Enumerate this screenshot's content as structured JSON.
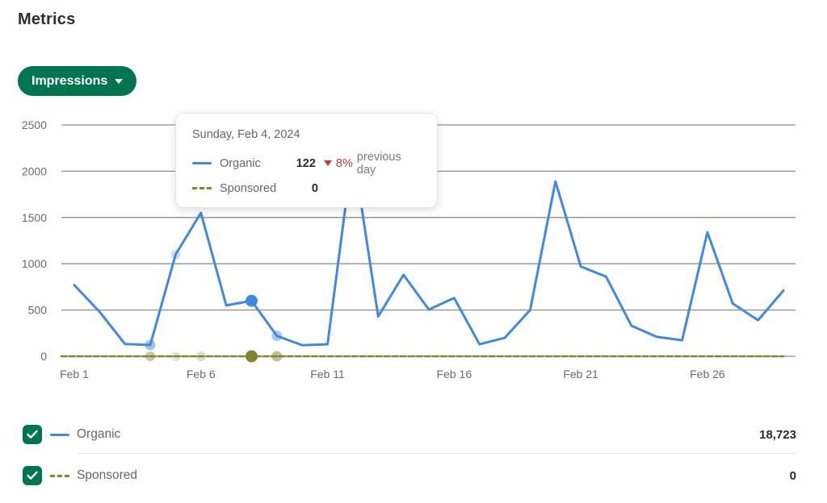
{
  "page": {
    "title": "Metrics"
  },
  "metric_selector": {
    "label": "Impressions",
    "icon": "chevron-down-icon"
  },
  "colors": {
    "accent_green": "#01754f",
    "organic_blue": "#4189dd",
    "sponsored_olive": "#7e8430",
    "negative_red": "#c13a31",
    "grid_gray": "#8e8e8e",
    "axis_text": "#6b6b6b"
  },
  "tooltip": {
    "date": "Sunday, Feb 4, 2024",
    "rows": [
      {
        "series": "Organic",
        "value": "122",
        "direction": "down",
        "change": "8%",
        "change_suffix": "previous day"
      },
      {
        "series": "Sponsored",
        "value": "0",
        "direction": null,
        "change": null,
        "change_suffix": null
      }
    ]
  },
  "legend": {
    "rows": [
      {
        "label": "Organic",
        "total": "18,723",
        "checked": true,
        "swatch": "solid-blue"
      },
      {
        "label": "Sponsored",
        "total": "0",
        "checked": true,
        "swatch": "dashed-olive"
      }
    ]
  },
  "chart_data": {
    "type": "line",
    "title": "Impressions by day",
    "x": [
      "Feb 1",
      "Feb 2",
      "Feb 3",
      "Feb 4",
      "Feb 5",
      "Feb 6",
      "Feb 7",
      "Feb 8",
      "Feb 9",
      "Feb 10",
      "Feb 11",
      "Feb 12",
      "Feb 13",
      "Feb 14",
      "Feb 15",
      "Feb 16",
      "Feb 17",
      "Feb 18",
      "Feb 19",
      "Feb 20",
      "Feb 21",
      "Feb 22",
      "Feb 23",
      "Feb 24",
      "Feb 25",
      "Feb 26",
      "Feb 27",
      "Feb 28",
      "Feb 29"
    ],
    "x_tick_labels": [
      "Feb 1",
      "Feb 6",
      "Feb 11",
      "Feb 16",
      "Feb 21",
      "Feb 26"
    ],
    "y_ticks": [
      0,
      500,
      1000,
      1500,
      2000,
      2500
    ],
    "ylim": [
      0,
      2500
    ],
    "grid": true,
    "legend_position": "bottom",
    "series": [
      {
        "name": "Organic",
        "color": "#4189dd",
        "style": "solid",
        "width": 3,
        "total": 18723,
        "values": [
          770,
          480,
          133,
          122,
          1100,
          1550,
          550,
          600,
          220,
          120,
          130,
          2230,
          430,
          880,
          505,
          630,
          130,
          200,
          500,
          1890,
          970,
          860,
          330,
          210,
          173,
          1340,
          570,
          390,
          710
        ]
      },
      {
        "name": "Sponsored",
        "color": "#7e8430",
        "style": "dashed",
        "width": 2.5,
        "full_width": true,
        "total": 0,
        "values": [
          0,
          0,
          0,
          0,
          0,
          0,
          0,
          0,
          0,
          0,
          0,
          0,
          0,
          0,
          0,
          0,
          0,
          0,
          0,
          0,
          0,
          0,
          0,
          0,
          0,
          0,
          0,
          0,
          0
        ]
      }
    ],
    "markers": [
      {
        "x_index": 3,
        "series": 0,
        "radius": 6.5,
        "opacity": 0.5
      },
      {
        "x_index": 3,
        "series": 1,
        "radius": 6,
        "opacity": 0.45
      },
      {
        "x_index": 4,
        "series": 0,
        "radius": 6,
        "opacity": 0.25
      },
      {
        "x_index": 4,
        "series": 1,
        "radius": 6,
        "opacity": 0.2
      },
      {
        "x_index": 5,
        "series": 1,
        "radius": 6,
        "opacity": 0.25
      },
      {
        "x_index": 7,
        "series": 0,
        "radius": 7.5,
        "opacity": 1
      },
      {
        "x_index": 7,
        "series": 1,
        "radius": 7.5,
        "opacity": 1
      },
      {
        "x_index": 8,
        "series": 0,
        "radius": 6.5,
        "opacity": 0.45
      },
      {
        "x_index": 8,
        "series": 1,
        "radius": 6.5,
        "opacity": 0.5
      }
    ]
  }
}
